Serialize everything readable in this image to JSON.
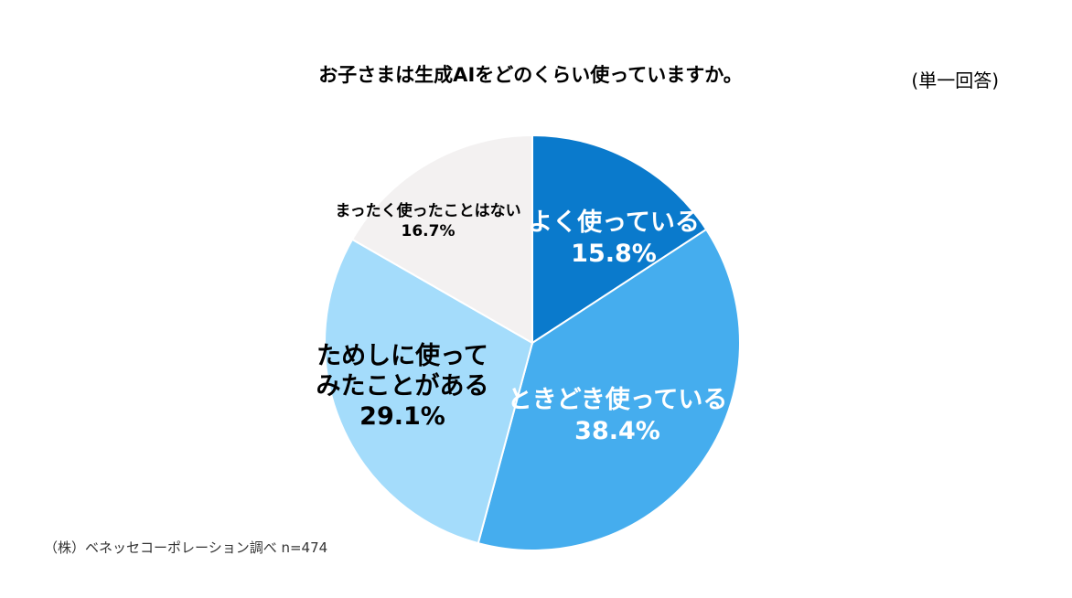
{
  "header": {
    "title": "お子さまは生成AIをどのくらい使っていますか。",
    "answer_type": "(単一回答)"
  },
  "footer": {
    "source": "（株）ベネッセコーポレーション調べ n=474"
  },
  "chart_data": {
    "type": "pie",
    "title": "お子さまは生成AIをどのくらい使っていますか。",
    "start": "12 o'clock",
    "direction": "clockwise",
    "slices": [
      {
        "label_lines": [
          "よく使っている"
        ],
        "value": 15.8,
        "value_text": "15.8%",
        "color": "#0a7acc",
        "text_color": "#ffffff"
      },
      {
        "label_lines": [
          "ときどき使っている"
        ],
        "value": 38.4,
        "value_text": "38.4%",
        "color": "#45adee",
        "text_color": "#ffffff"
      },
      {
        "label_lines": [
          "ためしに使って",
          "みたことがある"
        ],
        "value": 29.1,
        "value_text": "29.1%",
        "color": "#a4dcfb",
        "text_color": "#000000"
      },
      {
        "label_lines": [
          "まったく使ったことはない"
        ],
        "value": 16.7,
        "value_text": "16.7%",
        "color": "#f3f1f1",
        "text_color": "#000000"
      }
    ]
  }
}
